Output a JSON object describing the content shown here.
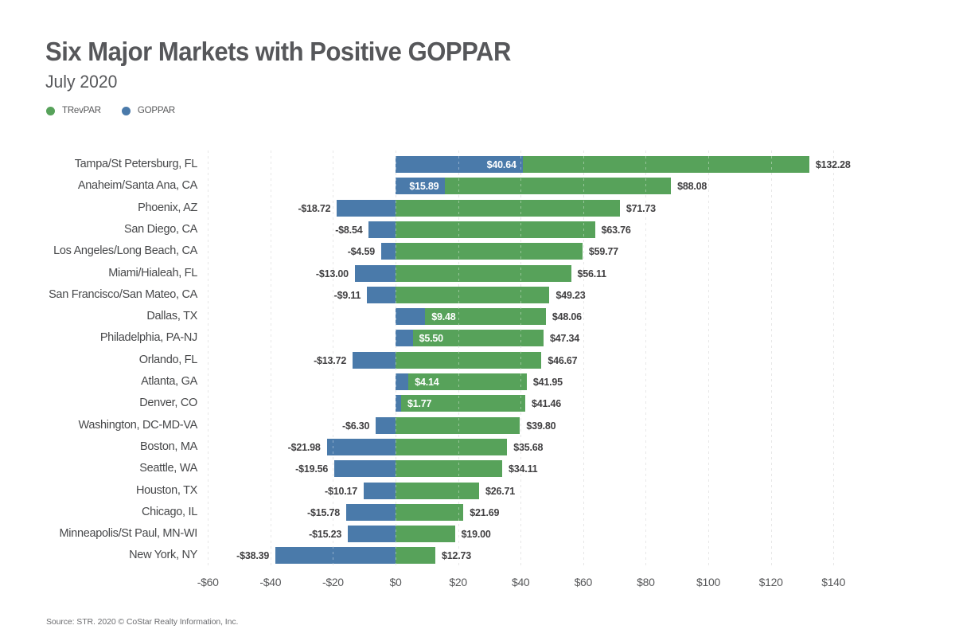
{
  "title": "Six Major Markets with Positive GOPPAR",
  "subtitle": "July 2020",
  "source": "Source: STR. 2020 © CoStar Realty Information, Inc.",
  "legend": [
    {
      "label": "TRevPAR",
      "color": "#57a25a"
    },
    {
      "label": "GOPPAR",
      "color": "#4a7aaa"
    }
  ],
  "colors": {
    "trevpar_green": "#57a25a",
    "goppar_blue": "#4a7aaa",
    "title_gray": "#56575a",
    "label_dark": "#414042",
    "gridline_gray": "#d8d8d8"
  },
  "chart_data": {
    "type": "bar",
    "orientation": "horizontal",
    "title": "Six Major Markets with Positive GOPPAR",
    "subtitle": "July 2020",
    "legend_position": "top-left",
    "grid": "dashed-vertical",
    "xlim": [
      -60,
      140
    ],
    "categories": [
      "Tampa/St Petersburg, FL",
      "Anaheim/Santa Ana, CA",
      "Phoenix, AZ",
      "San Diego, CA",
      "Los Angeles/Long Beach, CA",
      "Miami/Hialeah, FL",
      "San Francisco/San Mateo, CA",
      "Dallas, TX",
      "Philadelphia, PA-NJ",
      "Orlando, FL",
      "Atlanta, GA",
      "Denver, CO",
      "Washington, DC-MD-VA",
      "Boston, MA",
      "Seattle, WA",
      "Houston, TX",
      "Chicago, IL",
      "Minneapolis/St Paul, MN-WI",
      "New York, NY"
    ],
    "series": [
      {
        "name": "TRevPAR",
        "color": "#57a25a",
        "values": [
          132.28,
          88.08,
          71.73,
          63.76,
          59.77,
          56.11,
          49.23,
          48.06,
          47.34,
          46.67,
          41.95,
          41.46,
          39.8,
          35.68,
          34.11,
          26.71,
          21.69,
          19.0,
          12.73
        ],
        "labels": [
          "$132.28",
          "$88.08",
          "$71.73",
          "$63.76",
          "$59.77",
          "$56.11",
          "$49.23",
          "$48.06",
          "$47.34",
          "$46.67",
          "$41.95",
          "$41.46",
          "$39.80",
          "$35.68",
          "$34.11",
          "$26.71",
          "$21.69",
          "$19.00",
          "$12.73"
        ]
      },
      {
        "name": "GOPPAR",
        "color": "#4a7aaa",
        "values": [
          40.64,
          15.89,
          -18.72,
          -8.54,
          -4.59,
          -13.0,
          -9.11,
          9.48,
          5.5,
          -13.72,
          4.14,
          1.77,
          -6.3,
          -21.98,
          -19.56,
          -10.17,
          -15.78,
          -15.23,
          -38.39
        ],
        "labels": [
          "$40.64",
          "$15.89",
          "-$18.72",
          "-$8.54",
          "-$4.59",
          "-$13.00",
          "-$9.11",
          "$9.48",
          "$5.50",
          "-$13.72",
          "$4.14",
          "$1.77",
          "-$6.30",
          "-$21.98",
          "-$19.56",
          "-$10.17",
          "-$15.78",
          "-$15.23",
          "-$38.39"
        ]
      }
    ],
    "xticks": {
      "values": [
        -60,
        -40,
        -20,
        0,
        20,
        40,
        60,
        80,
        100,
        120,
        140
      ],
      "labels": [
        "-$60",
        "-$40",
        "-$20",
        "$0",
        "$20",
        "$40",
        "$60",
        "$80",
        "$100",
        "$120",
        "$140"
      ]
    }
  }
}
